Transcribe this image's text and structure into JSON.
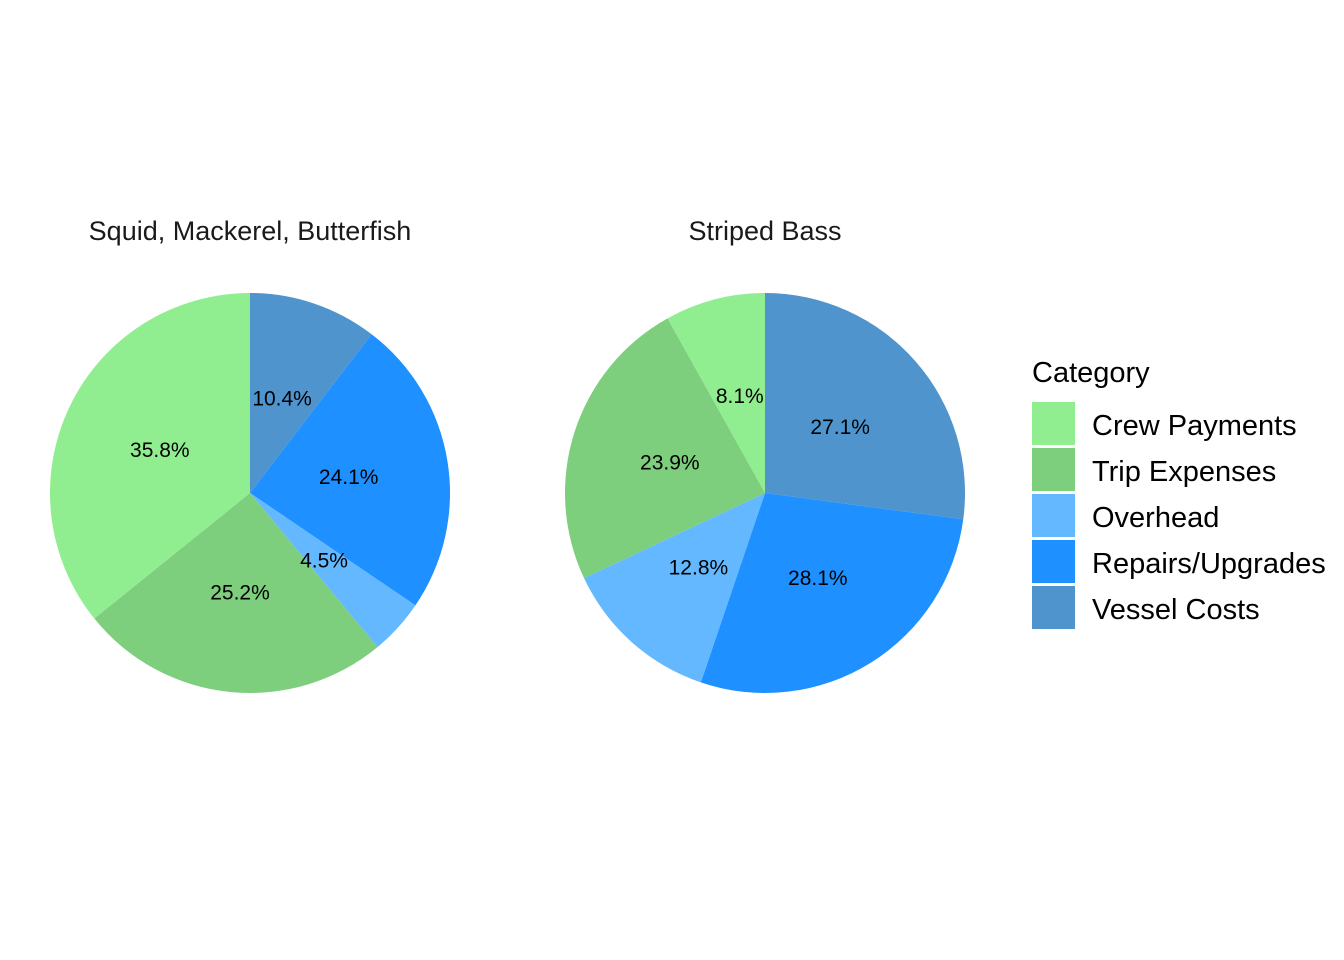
{
  "legend": {
    "title": "Category",
    "placement": "right"
  },
  "chart_data": [
    {
      "type": "pie",
      "title": "Squid, Mackerel, Butterfish",
      "slices": [
        {
          "category": "Vessel Costs",
          "value": 10.4,
          "label": "10.4%"
        },
        {
          "category": "Repairs/Upgrades",
          "value": 24.1,
          "label": "24.1%"
        },
        {
          "category": "Overhead",
          "value": 4.5,
          "label": "4.5%"
        },
        {
          "category": "Trip Expenses",
          "value": 25.2,
          "label": "25.2%"
        },
        {
          "category": "Crew Payments",
          "value": 35.8,
          "label": "35.8%"
        }
      ]
    },
    {
      "type": "pie",
      "title": "Striped Bass",
      "slices": [
        {
          "category": "Vessel Costs",
          "value": 27.1,
          "label": "27.1%"
        },
        {
          "category": "Repairs/Upgrades",
          "value": 28.1,
          "label": "28.1%"
        },
        {
          "category": "Overhead",
          "value": 12.8,
          "label": "12.8%"
        },
        {
          "category": "Trip Expenses",
          "value": 23.9,
          "label": "23.9%"
        },
        {
          "category": "Crew Payments",
          "value": 8.1,
          "label": "8.1%"
        }
      ]
    }
  ],
  "categories": [
    {
      "name": "Crew Payments",
      "color": "#90EE90"
    },
    {
      "name": "Trip Expenses",
      "color": "#7DCE7D"
    },
    {
      "name": "Overhead",
      "color": "#63B8FF"
    },
    {
      "name": "Repairs/Upgrades",
      "color": "#1E90FF"
    },
    {
      "name": "Vessel Costs",
      "color": "#4F94CD"
    }
  ]
}
